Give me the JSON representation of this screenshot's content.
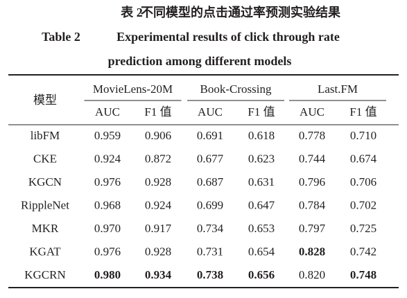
{
  "caption": {
    "cn_label": "表 2",
    "cn_title": "不同模型的点击通过率预测实验结果",
    "en_label": "Table 2",
    "en_title_lines": [
      "Experimental results of click through rate",
      "prediction among different models"
    ]
  },
  "table": {
    "corner": "模型",
    "groups": [
      "MovieLens-20M",
      "Book-Crossing",
      "Last.FM"
    ],
    "subheaders": [
      "AUC",
      "F1 值",
      "AUC",
      "F1 值",
      "AUC",
      "F1 值"
    ],
    "rows": [
      {
        "model": "libFM",
        "cells": [
          "0.959",
          "0.906",
          "0.691",
          "0.618",
          "0.778",
          "0.710"
        ]
      },
      {
        "model": "CKE",
        "cells": [
          "0.924",
          "0.872",
          "0.677",
          "0.623",
          "0.744",
          "0.674"
        ]
      },
      {
        "model": "KGCN",
        "cells": [
          "0.976",
          "0.928",
          "0.687",
          "0.631",
          "0.796",
          "0.706"
        ]
      },
      {
        "model": "RippleNet",
        "cells": [
          "0.968",
          "0.924",
          "0.699",
          "0.647",
          "0.784",
          "0.702"
        ]
      },
      {
        "model": "MKR",
        "cells": [
          "0.970",
          "0.917",
          "0.734",
          "0.653",
          "0.797",
          "0.725"
        ]
      },
      {
        "model": "KGAT",
        "cells": [
          "0.976",
          "0.928",
          "0.731",
          "0.654",
          {
            "text": "0.828",
            "bold": true
          },
          "0.742"
        ]
      },
      {
        "model": "KGCRN",
        "cells": [
          {
            "text": "0.980",
            "bold": true
          },
          {
            "text": "0.934",
            "bold": true
          },
          {
            "text": "0.738",
            "bold": true
          },
          {
            "text": "0.656",
            "bold": true
          },
          "0.820",
          {
            "text": "0.748",
            "bold": true
          }
        ]
      }
    ]
  }
}
